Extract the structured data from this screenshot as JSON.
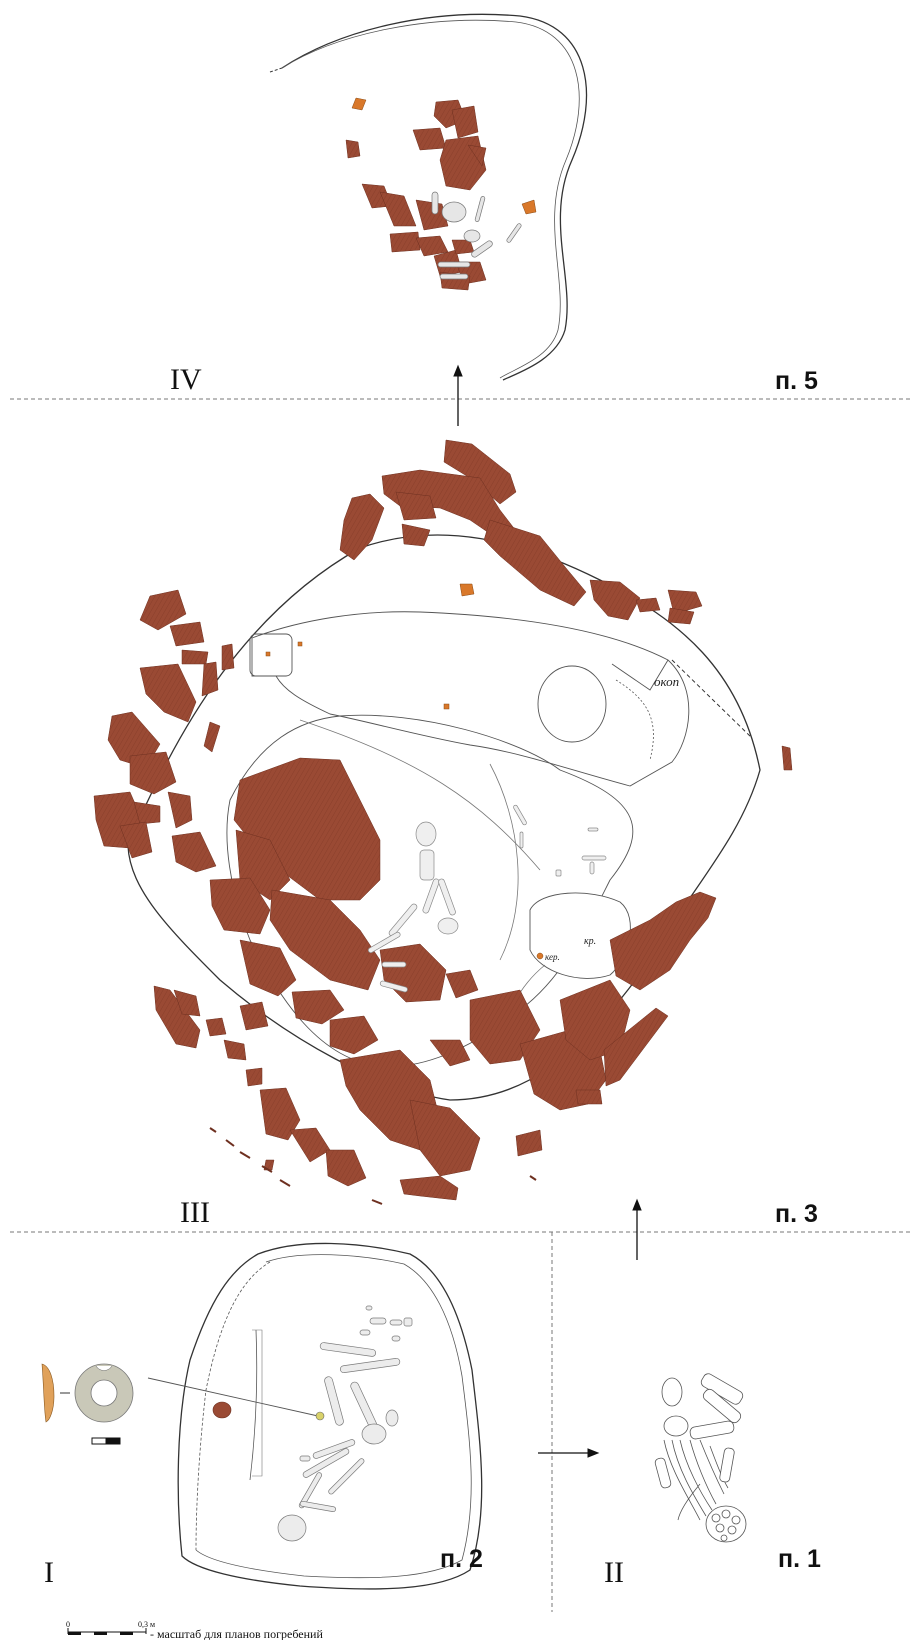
{
  "sections": {
    "iv": {
      "numeral": "IV",
      "plan": "п. 5"
    },
    "iii": {
      "numeral": "III",
      "plan": "п. 3"
    },
    "i": {
      "numeral": "I",
      "plan": "п. 2"
    },
    "ii": {
      "numeral": "II",
      "plan": "п. 1"
    }
  },
  "annotations": {
    "okop": "окоп",
    "kr": "кр.",
    "ker": "кер."
  },
  "scale": {
    "zero": "0",
    "end": "0,3 м",
    "caption": "- масштаб для планов погребений"
  },
  "colors": {
    "stone": "#9a4a34",
    "stone_edge": "#6e3020",
    "ceramic": "#d9782a",
    "outline": "#333333",
    "bone": "#e2e2e2",
    "bead": "#c9c8b8"
  }
}
